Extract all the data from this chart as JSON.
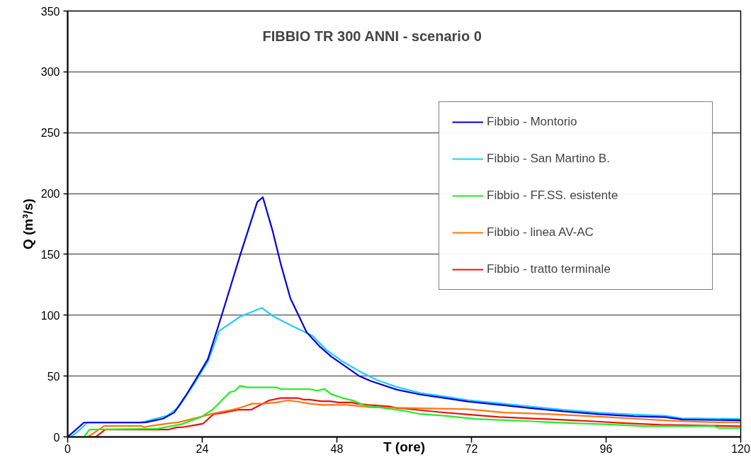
{
  "chart_data": {
    "type": "line",
    "title": "FIBBIO TR 300 ANNI - scenario 0",
    "xlabel": "T (ore)",
    "ylabel": "Q (m³/s)",
    "xlim": [
      0,
      120
    ],
    "ylim": [
      0,
      350
    ],
    "xticks": [
      0,
      24,
      48,
      72,
      96,
      120
    ],
    "yticks": [
      0,
      50,
      100,
      150,
      200,
      250,
      300,
      350
    ],
    "grid": "y",
    "legend": "top right",
    "line_style": "solid",
    "marker": "none",
    "series": [
      {
        "name": "Fibbio - Montorio",
        "color": "#0000dd",
        "x": [
          0,
          1,
          2.9,
          13,
          14,
          17,
          19,
          21,
          23.2,
          25,
          27.4,
          30.8,
          33.8,
          34.8,
          36.5,
          38,
          39.7,
          42.6,
          45,
          47,
          49.5,
          52,
          54,
          58.7,
          62.9,
          67.2,
          71.4,
          77.8,
          81.9,
          88.3,
          94.6,
          101,
          106.5,
          109.5,
          120
        ],
        "values": [
          0,
          4,
          11.8,
          11.8,
          12,
          15,
          20,
          33.5,
          50,
          64,
          99,
          150,
          193,
          197,
          170,
          142,
          114,
          86,
          74,
          66,
          58,
          50,
          46,
          38.8,
          34.8,
          32,
          29,
          26,
          24,
          21,
          18.7,
          17,
          16.2,
          14.3,
          13.6
        ]
      },
      {
        "name": "Fibbio - San Martino B.",
        "color": "#22ccff",
        "x": [
          0.6,
          1.7,
          3.5,
          13,
          17.7,
          19.8,
          22.6,
          25,
          27,
          30.8,
          34.6,
          36.7,
          40.1,
          43.7,
          46,
          49,
          52,
          55,
          58.7,
          62.9,
          67.2,
          71.4,
          77.8,
          81.9,
          88.3,
          94.6,
          101,
          106.5,
          109.5,
          120
        ],
        "values": [
          0,
          4,
          11.8,
          11.8,
          17.4,
          24.5,
          44,
          62,
          87,
          99,
          106,
          99,
          91,
          83,
          72,
          62,
          54,
          47,
          41,
          36,
          33.3,
          30.3,
          27.3,
          25.3,
          22.3,
          20,
          18.4,
          17.4,
          15.4,
          14.8
        ]
      },
      {
        "name": "Fibbio - FF.SS. esistente",
        "color": "#22ee22",
        "x": [
          2.9,
          3.9,
          16,
          20.3,
          23.8,
          25.8,
          28.9,
          29.9,
          30.7,
          32.1,
          37.2,
          38,
          43.1,
          44.5,
          45.8,
          46.9,
          49,
          51.1,
          52.8,
          60,
          62.9,
          67.2,
          72.7,
          82.8,
          89.2,
          95.9,
          102.7,
          115.3,
          116,
          120
        ],
        "values": [
          0,
          6,
          6.8,
          10.4,
          16.4,
          22.3,
          36.7,
          38,
          42,
          40.7,
          40.7,
          39.3,
          39.3,
          38,
          39.5,
          35.3,
          32,
          29.6,
          26,
          21.4,
          18.8,
          17.4,
          14.8,
          12.8,
          11.4,
          10.4,
          8.8,
          8.8,
          7.4,
          7.4
        ]
      },
      {
        "name": "Fibbio - linea AV-AC",
        "color": "#ff7711",
        "x": [
          3.6,
          6.5,
          13,
          13.7,
          14.7,
          18.5,
          19.8,
          23.6,
          26.1,
          29.2,
          30.8,
          32.9,
          34.7,
          37.2,
          39.3,
          41.4,
          43.1,
          45.6,
          49.9,
          54,
          60,
          71.4,
          77.8,
          85.4,
          95.9,
          101,
          108.6,
          115.8,
          120
        ],
        "values": [
          0,
          9,
          9,
          8,
          9,
          11.4,
          12,
          16.4,
          19.4,
          22.3,
          24,
          27.3,
          27.3,
          28.3,
          30,
          28.7,
          27.3,
          26.3,
          26.3,
          24.4,
          23.8,
          22.8,
          20,
          18.8,
          16.4,
          15,
          13,
          12,
          12
        ]
      },
      {
        "name": "Fibbio - tratto terminale",
        "color": "#ee1111",
        "x": [
          5,
          6.7,
          17.9,
          19.4,
          20.5,
          22.3,
          24.1,
          26,
          27.9,
          30.4,
          32.7,
          35.9,
          38,
          41,
          42.1,
          43.1,
          45.2,
          46.8,
          48.2,
          50.7,
          51.6,
          53.7,
          57.5,
          58.7,
          60,
          66.3,
          71.4,
          76.9,
          88.3,
          93.8,
          98.9,
          105.7,
          120
        ],
        "values": [
          0,
          6,
          6,
          7.8,
          8,
          9.4,
          10.8,
          18.7,
          20,
          22.3,
          22.3,
          30,
          32,
          32,
          30.6,
          30.6,
          29.3,
          29.3,
          28.3,
          28.3,
          27.3,
          26.3,
          25,
          23.7,
          23.3,
          20.4,
          18.4,
          16.4,
          14,
          12.8,
          11.4,
          10,
          8.8
        ]
      }
    ]
  }
}
